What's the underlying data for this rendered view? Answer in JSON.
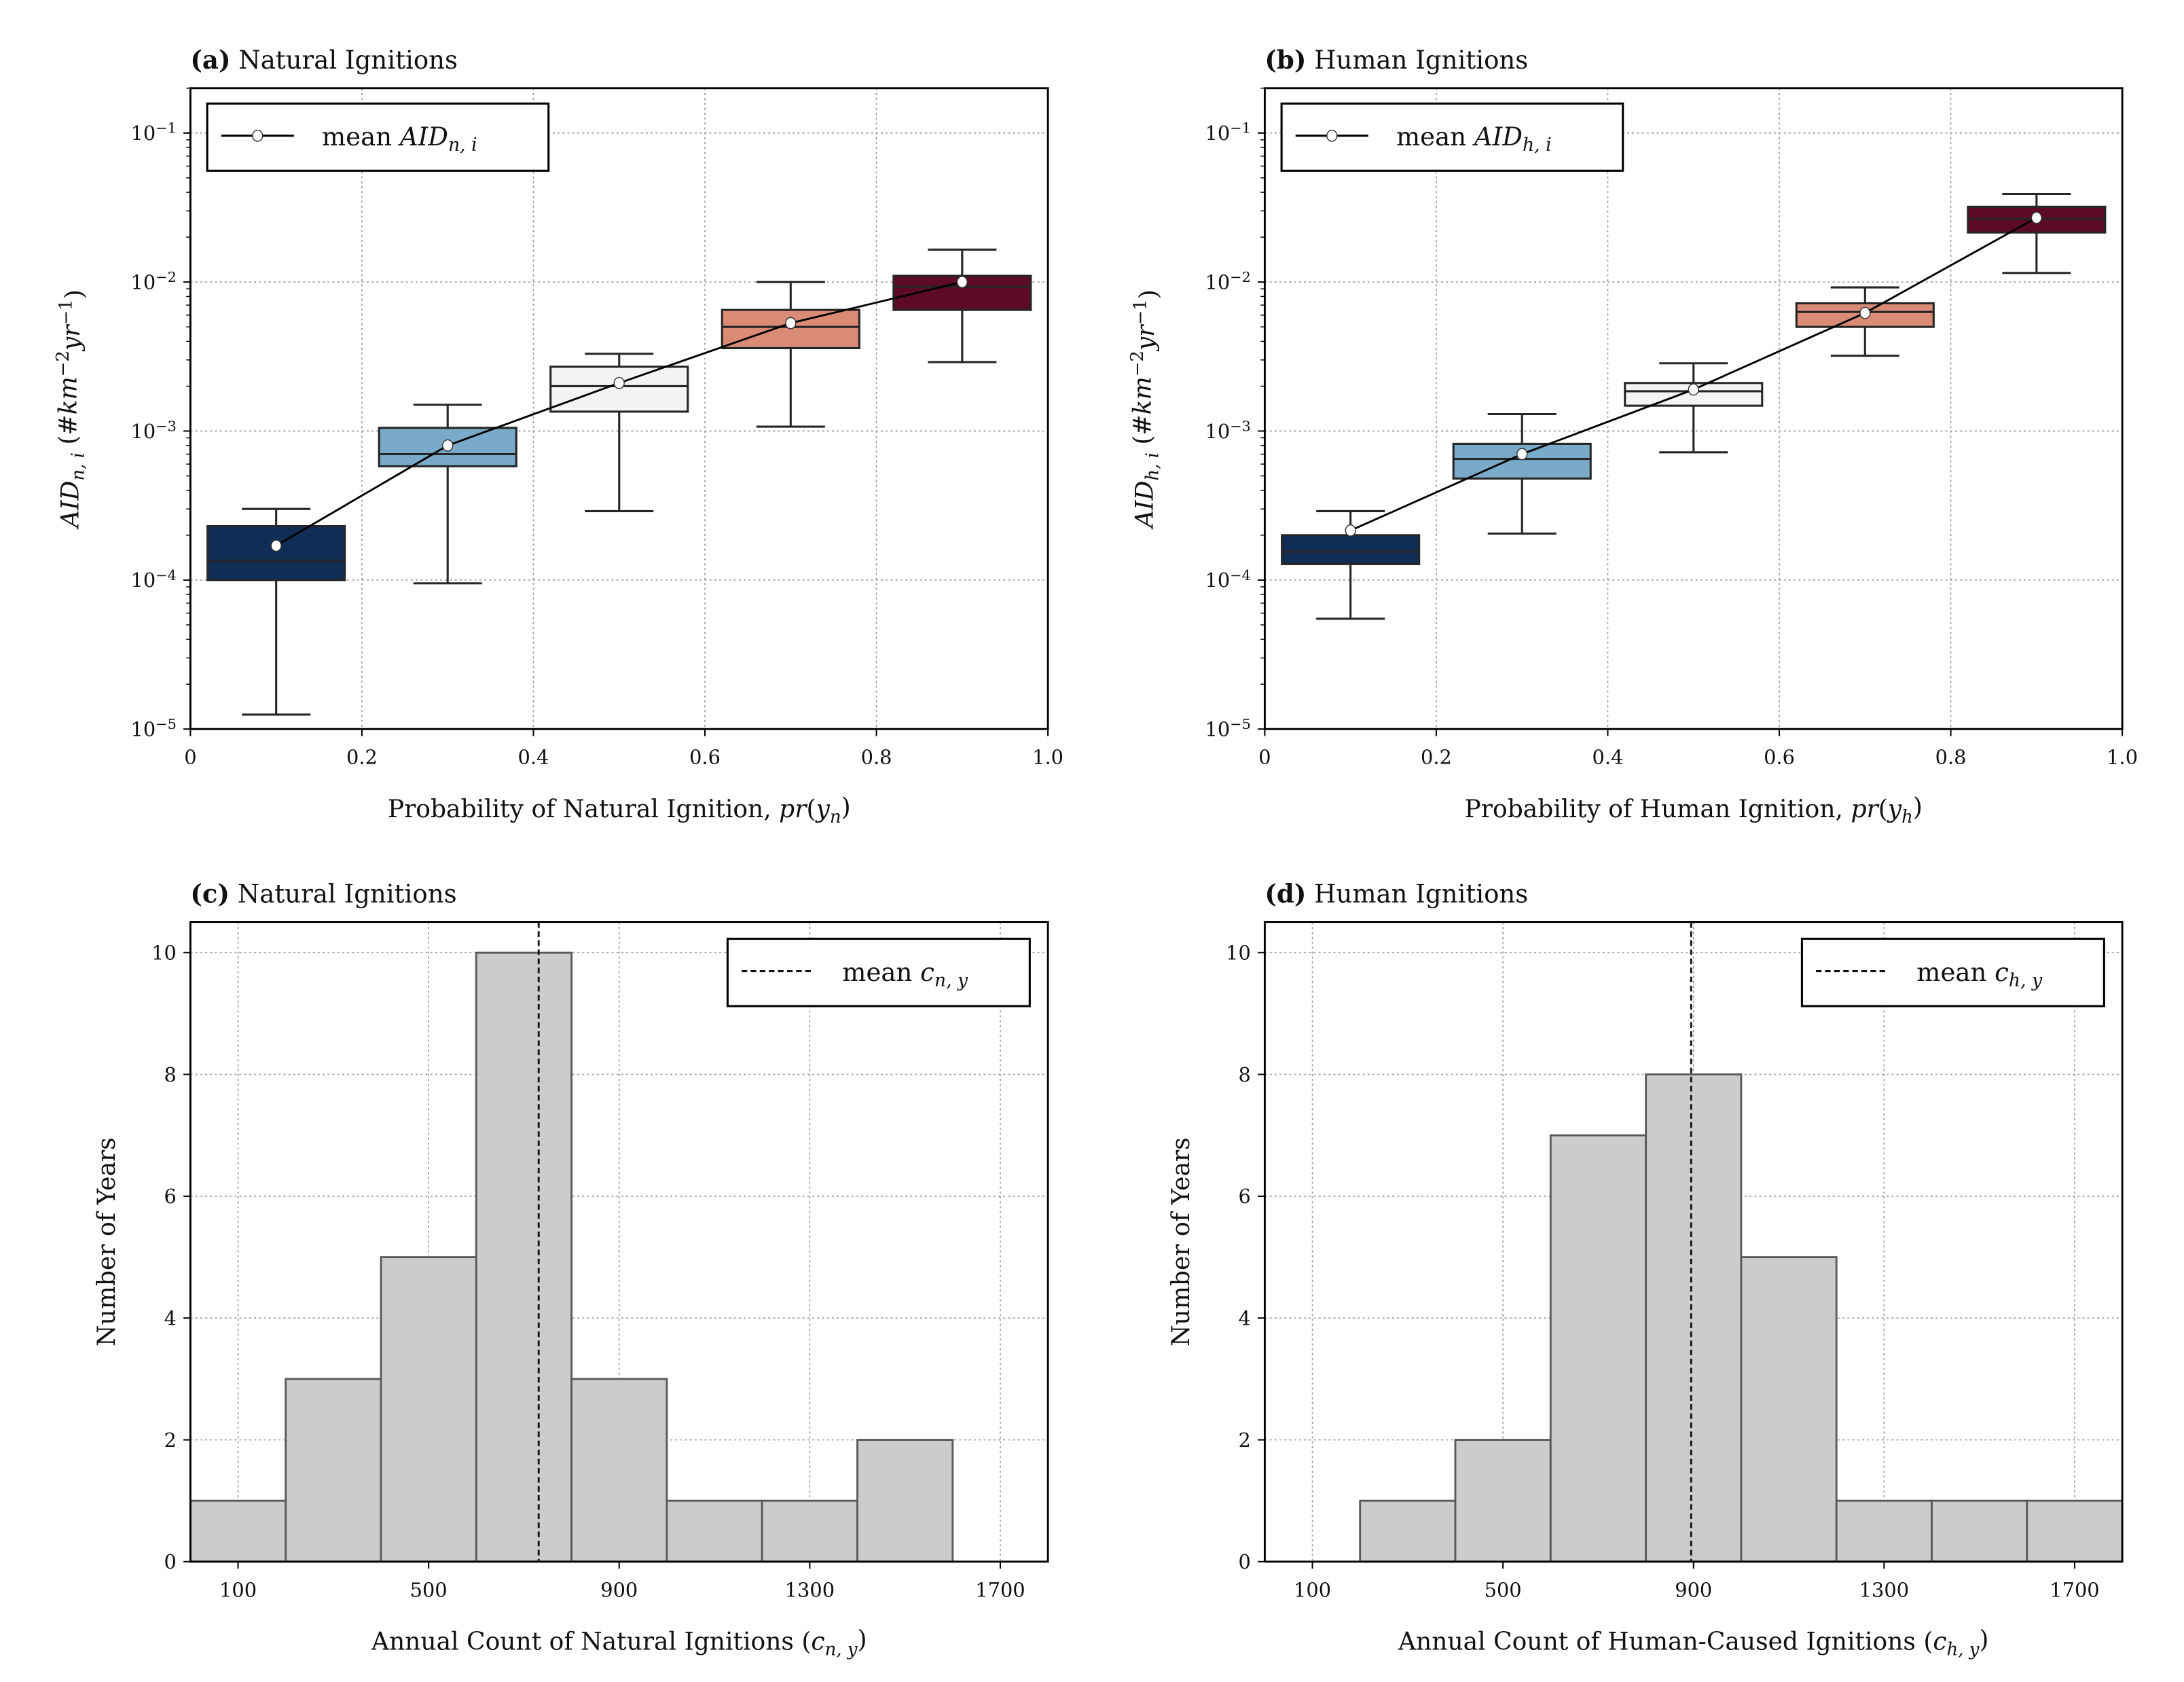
{
  "chart_data": [
    {
      "id": "a",
      "type": "box",
      "title": [
        {
          "t": "(a)",
          "s": "b"
        },
        {
          "t": " Natural Ignitions",
          "s": ""
        }
      ],
      "xlabel": [
        {
          "t": "Probability of Natural Ignition, ",
          "s": ""
        },
        {
          "t": "pr",
          "s": "i"
        },
        {
          "t": "(",
          "s": ""
        },
        {
          "t": "y",
          "s": "i"
        },
        {
          "t": "n",
          "s": "sub"
        },
        {
          "t": ")",
          "s": ""
        }
      ],
      "ylabel": [
        {
          "t": "AID",
          "s": "i"
        },
        {
          "t": "n, i",
          "s": "sub"
        },
        {
          "t": " (#",
          "s": ""
        },
        {
          "t": "km",
          "s": "i"
        },
        {
          "t": "−2",
          "s": "sup"
        },
        {
          "t": "yr",
          "s": "i"
        },
        {
          "t": "−1",
          "s": "sup"
        },
        {
          "t": ")",
          "s": ""
        }
      ],
      "legend": [
        {
          "t": "mean ",
          "s": ""
        },
        {
          "t": "AID",
          "s": "i"
        },
        {
          "t": "n, i",
          "s": "sub"
        }
      ],
      "legend_placement": "top-left",
      "xlim": [
        0,
        1.0
      ],
      "ylim": [
        1e-05,
        0.2
      ],
      "yscale": "log",
      "xticks": [
        "0",
        "0.2",
        "0.4",
        "0.6",
        "0.8",
        "1.0"
      ],
      "yticks": [
        {
          "exp": "−5",
          "v": 1e-05
        },
        {
          "exp": "−4",
          "v": 0.0001
        },
        {
          "exp": "−3",
          "v": 0.001
        },
        {
          "exp": "−2",
          "v": 0.01
        },
        {
          "exp": "−1",
          "v": 0.1
        }
      ],
      "boxes": [
        {
          "x": 0.1,
          "whislo": 1.25e-05,
          "q1": 0.0001,
          "med": 0.000135,
          "q3": 0.00023,
          "whishi": 0.0003,
          "mean": 0.00017,
          "color": "#0f2d55"
        },
        {
          "x": 0.3,
          "whislo": 9.5e-05,
          "q1": 0.00058,
          "med": 0.0007,
          "q3": 0.00105,
          "whishi": 0.0015,
          "mean": 0.0008,
          "color": "#79aac9"
        },
        {
          "x": 0.5,
          "whislo": 0.00029,
          "q1": 0.00135,
          "med": 0.002,
          "q3": 0.0027,
          "whishi": 0.0033,
          "mean": 0.0021,
          "color": "#f4f4f4"
        },
        {
          "x": 0.7,
          "whislo": 0.00107,
          "q1": 0.0036,
          "med": 0.005,
          "q3": 0.0065,
          "whishi": 0.01,
          "mean": 0.0053,
          "color": "#d98b76"
        },
        {
          "x": 0.9,
          "whislo": 0.0029,
          "q1": 0.0065,
          "med": 0.0093,
          "q3": 0.011,
          "whishi": 0.0165,
          "mean": 0.01,
          "color": "#5d0b24"
        }
      ]
    },
    {
      "id": "b",
      "type": "box",
      "title": [
        {
          "t": "(b)",
          "s": "b"
        },
        {
          "t": " Human Ignitions",
          "s": ""
        }
      ],
      "xlabel": [
        {
          "t": "Probability of Human Ignition, ",
          "s": ""
        },
        {
          "t": "pr",
          "s": "i"
        },
        {
          "t": "(",
          "s": ""
        },
        {
          "t": "y",
          "s": "i"
        },
        {
          "t": "h",
          "s": "sub"
        },
        {
          "t": ")",
          "s": ""
        }
      ],
      "ylabel": [
        {
          "t": "AID",
          "s": "i"
        },
        {
          "t": "h, i",
          "s": "sub"
        },
        {
          "t": " (#",
          "s": ""
        },
        {
          "t": "km",
          "s": "i"
        },
        {
          "t": "−2",
          "s": "sup"
        },
        {
          "t": "yr",
          "s": "i"
        },
        {
          "t": "−1",
          "s": "sup"
        },
        {
          "t": ")",
          "s": ""
        }
      ],
      "legend": [
        {
          "t": "mean ",
          "s": ""
        },
        {
          "t": "AID",
          "s": "i"
        },
        {
          "t": "h, i",
          "s": "sub"
        }
      ],
      "legend_placement": "top-left",
      "xlim": [
        0,
        1.0
      ],
      "ylim": [
        1e-05,
        0.2
      ],
      "yscale": "log",
      "xticks": [
        "0",
        "0.2",
        "0.4",
        "0.6",
        "0.8",
        "1.0"
      ],
      "yticks": [
        {
          "exp": "−5",
          "v": 1e-05
        },
        {
          "exp": "−4",
          "v": 0.0001
        },
        {
          "exp": "−3",
          "v": 0.001
        },
        {
          "exp": "−2",
          "v": 0.01
        },
        {
          "exp": "−1",
          "v": 0.1
        }
      ],
      "boxes": [
        {
          "x": 0.1,
          "whislo": 5.5e-05,
          "q1": 0.000128,
          "med": 0.000155,
          "q3": 0.0002,
          "whishi": 0.00029,
          "mean": 0.000215,
          "color": "#0f2d55"
        },
        {
          "x": 0.3,
          "whislo": 0.000205,
          "q1": 0.00048,
          "med": 0.00065,
          "q3": 0.00082,
          "whishi": 0.0013,
          "mean": 0.0007,
          "color": "#79aac9"
        },
        {
          "x": 0.5,
          "whislo": 0.00072,
          "q1": 0.00148,
          "med": 0.00185,
          "q3": 0.0021,
          "whishi": 0.00285,
          "mean": 0.0019,
          "color": "#f4f4f4"
        },
        {
          "x": 0.7,
          "whislo": 0.0032,
          "q1": 0.005,
          "med": 0.0063,
          "q3": 0.0072,
          "whishi": 0.0092,
          "mean": 0.0062,
          "color": "#d98b76"
        },
        {
          "x": 0.9,
          "whislo": 0.0115,
          "q1": 0.0215,
          "med": 0.0265,
          "q3": 0.032,
          "whishi": 0.039,
          "mean": 0.027,
          "color": "#5d0b24"
        }
      ]
    },
    {
      "id": "c",
      "type": "bar",
      "title": [
        {
          "t": "(c)",
          "s": "b"
        },
        {
          "t": " Natural Ignitions",
          "s": ""
        }
      ],
      "xlabel": [
        {
          "t": "Annual Count of Natural Ignitions (",
          "s": ""
        },
        {
          "t": "c",
          "s": "i"
        },
        {
          "t": "n, y",
          "s": "sub"
        },
        {
          "t": ")",
          "s": ""
        }
      ],
      "ylabel": [
        {
          "t": "Number of Years",
          "s": ""
        }
      ],
      "legend": [
        {
          "t": "mean ",
          "s": ""
        },
        {
          "t": "c",
          "s": "i"
        },
        {
          "t": "n, y",
          "s": "sub"
        }
      ],
      "legend_placement": "top-right",
      "xlim": [
        0,
        1800
      ],
      "ylim": [
        0,
        10.5
      ],
      "xticks": [
        "100",
        "500",
        "900",
        "1300",
        "1700"
      ],
      "yticks": [
        "0",
        "2",
        "4",
        "6",
        "8",
        "10"
      ],
      "bin_edges": [
        0,
        200,
        400,
        600,
        800,
        1000,
        1200,
        1400,
        1600
      ],
      "counts": [
        1,
        3,
        5,
        10,
        3,
        1,
        1,
        2
      ],
      "mean": 731,
      "color": "#cccccc"
    },
    {
      "id": "d",
      "type": "bar",
      "title": [
        {
          "t": "(d)",
          "s": "b"
        },
        {
          "t": " Human Ignitions",
          "s": ""
        }
      ],
      "xlabel": [
        {
          "t": "Annual Count of Human-Caused Ignitions (",
          "s": ""
        },
        {
          "t": "c",
          "s": "i"
        },
        {
          "t": "h, y",
          "s": "sub"
        },
        {
          "t": ")",
          "s": ""
        }
      ],
      "ylabel": [
        {
          "t": "Number of Years",
          "s": ""
        }
      ],
      "legend": [
        {
          "t": "mean ",
          "s": ""
        },
        {
          "t": "c",
          "s": "i"
        },
        {
          "t": "h, y",
          "s": "sub"
        }
      ],
      "legend_placement": "top-right",
      "xlim": [
        0,
        1800
      ],
      "ylim": [
        0,
        10.5
      ],
      "xticks": [
        "100",
        "500",
        "900",
        "1300",
        "1700"
      ],
      "yticks": [
        "0",
        "2",
        "4",
        "6",
        "8",
        "10"
      ],
      "bin_edges": [
        200,
        400,
        600,
        800,
        1000,
        1200,
        1400,
        1600,
        1800
      ],
      "counts": [
        1,
        2,
        7,
        8,
        5,
        1,
        1,
        1
      ],
      "mean": 895,
      "color": "#cccccc"
    }
  ]
}
